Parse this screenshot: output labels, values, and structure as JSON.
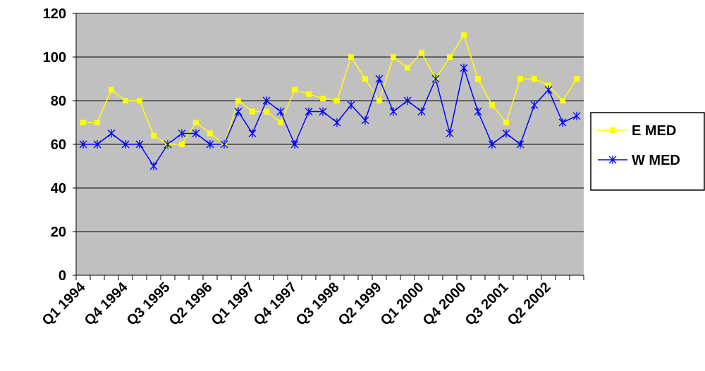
{
  "chart_data": {
    "type": "line",
    "categories": [
      "Q1 1994",
      null,
      null,
      "Q4 1994",
      null,
      null,
      "Q3 1995",
      null,
      null,
      "Q2 1996",
      null,
      null,
      "Q1 1997",
      null,
      null,
      "Q4 1997",
      null,
      null,
      "Q3 1998",
      null,
      null,
      "Q2 1999",
      null,
      null,
      "Q1 2000",
      null,
      null,
      "Q4 2000",
      null,
      null,
      "Q3 2001",
      null,
      null,
      "Q2 2002",
      null,
      null
    ],
    "series": [
      {
        "name": "E MED",
        "color": "#ffff00",
        "marker": "square",
        "values": [
          70,
          70,
          85,
          80,
          80,
          64,
          60,
          60,
          70,
          65,
          60,
          80,
          75,
          75,
          70,
          85,
          83,
          81,
          80,
          100,
          90,
          80,
          100,
          95,
          102,
          90,
          100,
          110,
          90,
          78,
          70,
          90,
          90,
          87,
          80,
          90
        ]
      },
      {
        "name": "W MED",
        "color": "#0000ff",
        "marker": "star",
        "values": [
          60,
          60,
          65,
          60,
          60,
          50,
          60,
          65,
          65,
          60,
          60,
          75,
          65,
          80,
          75,
          60,
          75,
          75,
          70,
          78,
          71,
          90,
          75,
          80,
          75,
          90,
          65,
          95,
          75,
          60,
          65,
          60,
          78,
          85,
          70,
          73
        ]
      }
    ],
    "ylim": [
      0,
      120
    ],
    "yticks": [
      0,
      20,
      40,
      60,
      80,
      100,
      120
    ],
    "grid": true,
    "legend": "right"
  }
}
